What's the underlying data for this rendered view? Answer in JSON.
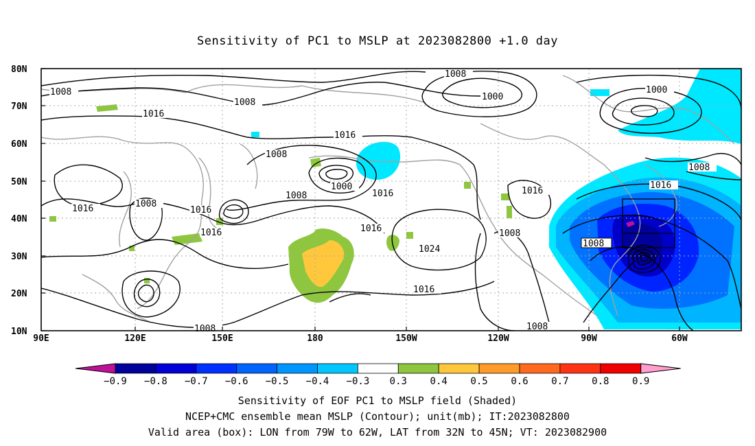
{
  "title": "Sensitivity of PC1 to MSLP at 2023082800 +1.0 day",
  "lat_labels": [
    "80N",
    "70N",
    "60N",
    "50N",
    "40N",
    "30N",
    "20N",
    "10N"
  ],
  "lon_labels": [
    "90E",
    "120E",
    "150E",
    "180",
    "150W",
    "120W",
    "90W",
    "60W"
  ],
  "isobar_labels": {
    "l1008_a": "1008",
    "l1008_b": "1008",
    "l1008_c": "1008",
    "l1008_d": "1008",
    "l1008_e": "1008",
    "l1008_f": "1008",
    "l1008_g": "1008",
    "l1008_h": "1008",
    "l1008_i": "1008",
    "l1008_j": "1008",
    "l1008_k": "1008",
    "l1000_a": "1000",
    "l1000_b": "1000",
    "l1000_c": "1000",
    "l1016_a": "1016",
    "l1016_b": "1016",
    "l1016_c": "1016",
    "l1016_d": "1016",
    "l1016_e": "1016",
    "l1016_f": "1016",
    "l1016_g": "1016",
    "l1016_h": "1016",
    "l1016_i": "1016",
    "l1016_j": "1016",
    "l1024": "1024"
  },
  "colorbar": {
    "labels": [
      "−0.9",
      "−0.8",
      "−0.7",
      "−0.6",
      "−0.5",
      "−0.4",
      "−0.3",
      "0.3",
      "0.4",
      "0.5",
      "0.6",
      "0.7",
      "0.8",
      "0.9"
    ],
    "colors": [
      "#00009a",
      "#0000d6",
      "#0030ff",
      "#0064ff",
      "#0096ff",
      "#00c8ff",
      "#ffffff",
      "#8ec63f",
      "#ffc83c",
      "#ff9b28",
      "#ff6a1e",
      "#ff3214",
      "#f00000"
    ],
    "left_arrow_color": "#c0109a",
    "right_arrow_color": "#ff9ecf"
  },
  "captions": {
    "line1": "Sensitivity of EOF PC1 to MSLP field (Shaded)",
    "line2": "NCEP+CMC ensemble mean MSLP (Contour); unit(mb); IT:2023082800",
    "line3": "Valid area (box): LON from 79W to 62W, LAT from 32N to 45N; VT: 2023082900"
  }
}
